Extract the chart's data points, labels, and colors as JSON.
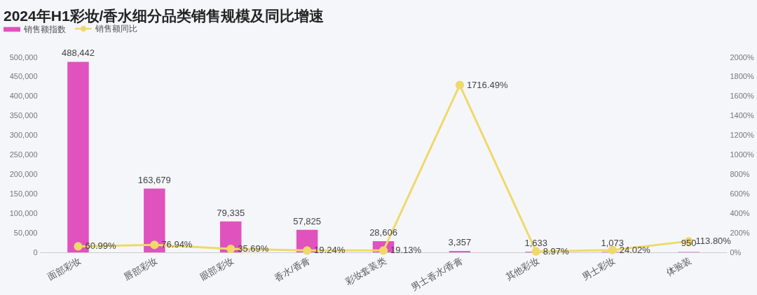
{
  "chart_data": {
    "type": "bar",
    "title": "2024年H1彩妆/香水细分品类销售规模及同比增速",
    "categories": [
      "面部彩妆",
      "唇部彩妆",
      "眼部彩妆",
      "香水/香膏",
      "彩妆套装类",
      "男士香水/香膏",
      "其他彩妆",
      "男士彩妆",
      "体验装"
    ],
    "series": [
      {
        "name": "销售额指数",
        "color": "#e052bd",
        "values": [
          488442,
          163679,
          79335,
          57825,
          28606,
          3357,
          1633,
          1073,
          950
        ],
        "value_labels": [
          "488,442",
          "163,679",
          "79,335",
          "57,825",
          "28,606",
          "3,357",
          "1,633",
          "1,073",
          "950"
        ]
      },
      {
        "name": "销售额同比",
        "type": "line",
        "axis": "y2",
        "color": "#eed96a",
        "values": [
          60.99,
          76.94,
          35.69,
          19.24,
          19.13,
          1716.49,
          8.97,
          24.02,
          113.8
        ],
        "value_labels": [
          "60.99%",
          "76.94%",
          "35.69%",
          "19.24%",
          "19.13%",
          "1716.49%",
          "8.97%",
          "24.02%",
          "113.80%"
        ]
      }
    ],
    "ylim": [
      0,
      500000
    ],
    "yticks": [
      0,
      {
        "value": 50000,
        "label": "50,000"
      },
      {
        "value": 100000,
        "label": "100,000"
      },
      {
        "value": 150000,
        "label": "150,000"
      },
      {
        "value": 200000,
        "label": "200,000"
      },
      {
        "value": 250000,
        "label": "250,000"
      },
      {
        "value": 300000,
        "label": "300,000"
      },
      {
        "value": 350000,
        "label": "350,000"
      },
      {
        "value": 400000,
        "label": "400,000"
      },
      {
        "value": 450000,
        "label": "450,000"
      },
      {
        "value": 500000,
        "label": "500,000"
      }
    ],
    "y2lim": [
      0,
      2000
    ],
    "y2ticks": [
      {
        "value": 0,
        "label": "0%"
      },
      {
        "value": 200,
        "label": "200%"
      },
      {
        "value": 400,
        "label": "400%"
      },
      {
        "value": 600,
        "label": "600%"
      },
      {
        "value": 800,
        "label": "800%"
      },
      {
        "value": 1000,
        "label": "1000%"
      },
      {
        "value": 1200,
        "label": "1200%"
      },
      {
        "value": 1400,
        "label": "1400%"
      },
      {
        "value": 1600,
        "label": "1600%"
      },
      {
        "value": 1800,
        "label": "1800%"
      },
      {
        "value": 2000,
        "label": "2000%"
      }
    ],
    "legend": "top left",
    "marker": "circle",
    "grid": false
  }
}
